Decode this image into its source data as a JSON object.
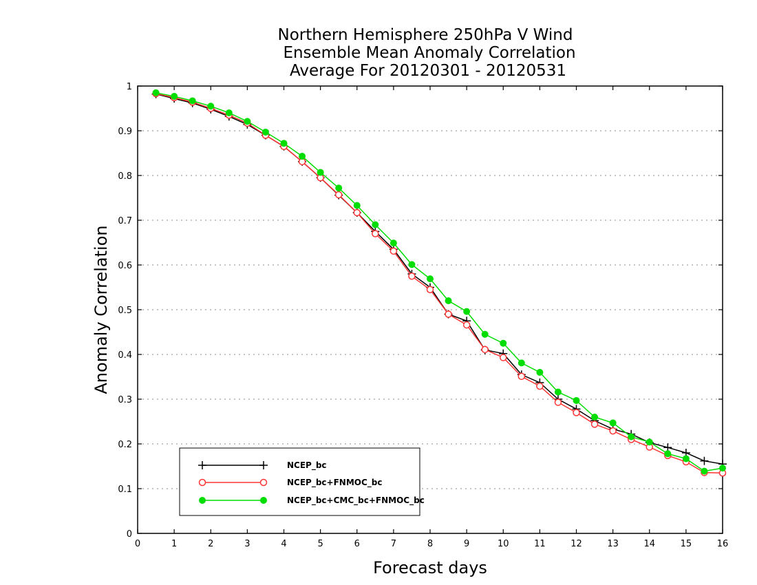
{
  "chart_data": {
    "type": "line",
    "title": [
      "Northern Hemisphere 250hPa V Wind",
      "Ensemble Mean Anomaly Correlation",
      "Average For 20120301 - 20120531"
    ],
    "xlabel": "Forecast days",
    "ylabel": "Anomaly Correlation",
    "xlim": [
      0,
      16
    ],
    "ylim": [
      0,
      1
    ],
    "x_ticks": [
      0,
      1,
      2,
      3,
      4,
      5,
      6,
      7,
      8,
      9,
      10,
      11,
      12,
      13,
      14,
      15,
      16
    ],
    "y_ticks": [
      0,
      0.1,
      0.2,
      0.3,
      0.4,
      0.5,
      0.6,
      0.7,
      0.8,
      0.9,
      1
    ],
    "y_grid": true,
    "legend_position": "bottom-left",
    "x": [
      0.5,
      1,
      1.5,
      2,
      2.5,
      3,
      3.5,
      4,
      4.5,
      5,
      5.5,
      6,
      6.5,
      7,
      7.5,
      8,
      8.5,
      9,
      9.5,
      10,
      10.5,
      11,
      11.5,
      12,
      12.5,
      13,
      13.5,
      14,
      14.5,
      15,
      15.5,
      16
    ],
    "series": [
      {
        "name": "NCEP_bc",
        "color": "#000000",
        "marker": "plus",
        "values": [
          0.982,
          0.972,
          0.962,
          0.948,
          0.932,
          0.914,
          0.89,
          0.865,
          0.831,
          0.795,
          0.756,
          0.717,
          0.675,
          0.635,
          0.58,
          0.55,
          0.49,
          0.475,
          0.41,
          0.402,
          0.355,
          0.337,
          0.3,
          0.278,
          0.252,
          0.233,
          0.222,
          0.203,
          0.192,
          0.18,
          0.162,
          0.155
        ]
      },
      {
        "name": "NCEP_bc+FNMOC_bc",
        "color": "#ff3333",
        "marker": "open-circle",
        "values": [
          0.983,
          0.974,
          0.964,
          0.95,
          0.935,
          0.917,
          0.89,
          0.865,
          0.831,
          0.795,
          0.757,
          0.717,
          0.67,
          0.631,
          0.575,
          0.545,
          0.49,
          0.466,
          0.411,
          0.393,
          0.351,
          0.329,
          0.293,
          0.27,
          0.244,
          0.229,
          0.21,
          0.193,
          0.174,
          0.16,
          0.136,
          0.135
        ]
      },
      {
        "name": "NCEP_bc+CMC_bc+FNMOC_bc",
        "color": "#00dd00",
        "marker": "filled-circle",
        "values": [
          0.985,
          0.977,
          0.967,
          0.955,
          0.94,
          0.921,
          0.897,
          0.872,
          0.843,
          0.807,
          0.772,
          0.733,
          0.69,
          0.649,
          0.601,
          0.569,
          0.52,
          0.496,
          0.445,
          0.425,
          0.381,
          0.36,
          0.316,
          0.297,
          0.26,
          0.247,
          0.216,
          0.204,
          0.178,
          0.167,
          0.139,
          0.146
        ]
      }
    ]
  }
}
